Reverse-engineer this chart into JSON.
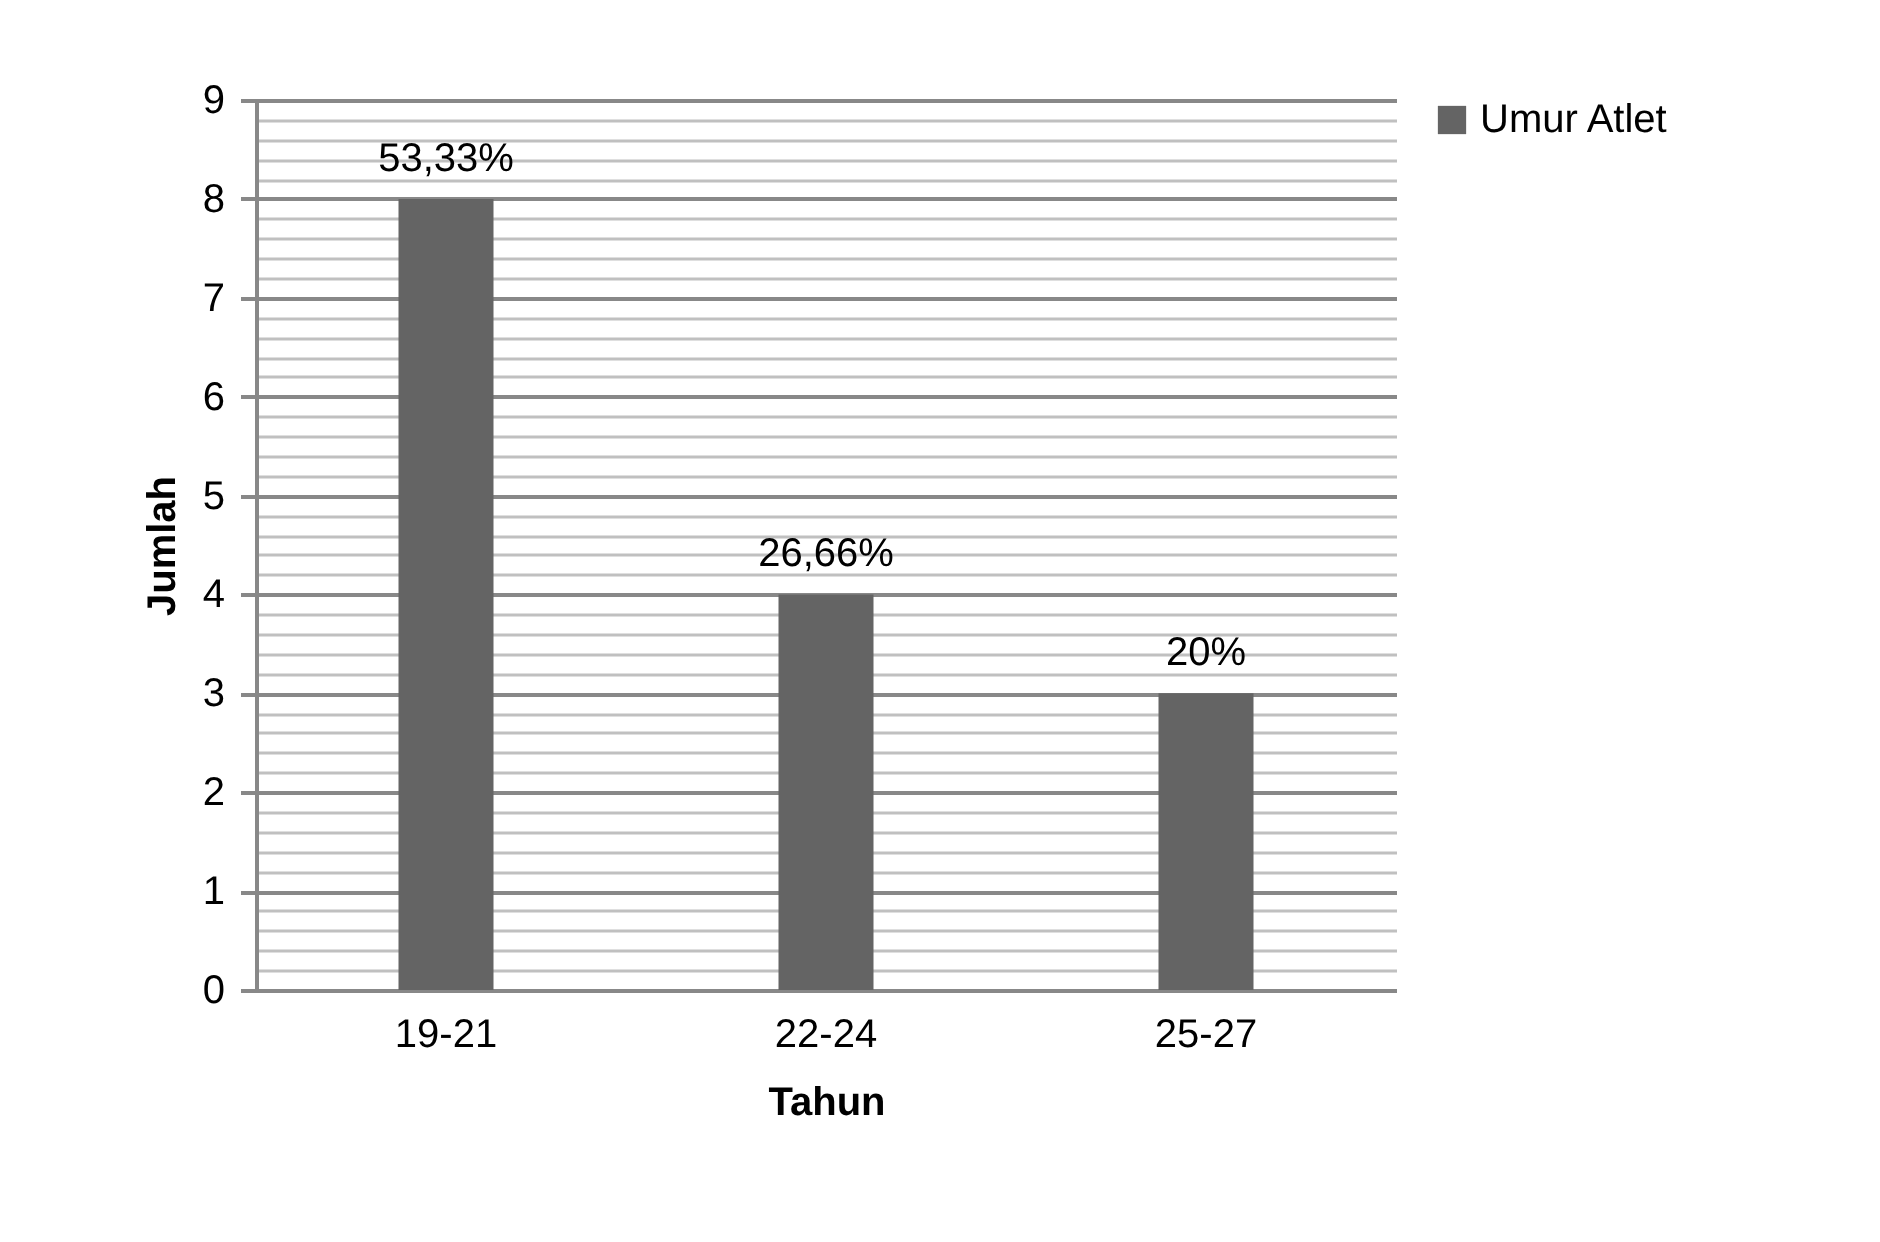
{
  "chart_data": {
    "type": "bar",
    "xlabel": "Tahun",
    "ylabel": "Jumlah",
    "categories": [
      "19-21",
      "22-24",
      "25-27"
    ],
    "series": [
      {
        "name": "Umur Atlet",
        "color": "#646464",
        "values": [
          8,
          4,
          3
        ]
      }
    ],
    "value_labels": [
      "53,33%",
      "26,66%",
      "20%"
    ],
    "ylim": [
      0,
      9
    ],
    "yticks": [
      0,
      {
        "value": 0.2,
        "label": null
      },
      {
        "value": 0.4,
        "label": null
      },
      {
        "value": 0.6,
        "label": null
      },
      {
        "value": 0.8,
        "label": null
      },
      1,
      {
        "value": 1.2,
        "label": null
      },
      {
        "value": 1.4,
        "label": null
      },
      {
        "value": 1.6,
        "label": null
      },
      {
        "value": 1.8,
        "label": null
      },
      2,
      {
        "value": 2.2,
        "label": null
      },
      {
        "value": 2.4,
        "label": null
      },
      {
        "value": 2.6,
        "label": null
      },
      {
        "value": 2.8,
        "label": null
      },
      3,
      {
        "value": 3.2,
        "label": null
      },
      {
        "value": 3.4,
        "label": null
      },
      {
        "value": 3.6,
        "label": null
      },
      {
        "value": 3.8,
        "label": null
      },
      4,
      {
        "value": 4.2,
        "label": null
      },
      {
        "value": 4.4,
        "label": null
      },
      {
        "value": 4.6,
        "label": null
      },
      {
        "value": 4.8,
        "label": null
      },
      5,
      {
        "value": 5.2,
        "label": null
      },
      {
        "value": 5.4,
        "label": null
      },
      {
        "value": 5.6,
        "label": null
      },
      {
        "value": 5.8,
        "label": null
      },
      6,
      {
        "value": 6.2,
        "label": null
      },
      {
        "value": 6.4,
        "label": null
      },
      {
        "value": 6.6,
        "label": null
      },
      {
        "value": 6.8,
        "label": null
      },
      7,
      {
        "value": 7.2,
        "label": null
      },
      {
        "value": 7.4,
        "label": null
      },
      {
        "value": 7.6,
        "label": null
      },
      {
        "value": 7.8,
        "label": null
      },
      8,
      {
        "value": 8.2,
        "label": null
      },
      {
        "value": 8.4,
        "label": null
      },
      {
        "value": 8.6,
        "label": null
      },
      {
        "value": 8.8,
        "label": null
      },
      9
    ],
    "grid": true,
    "legend": "right"
  }
}
